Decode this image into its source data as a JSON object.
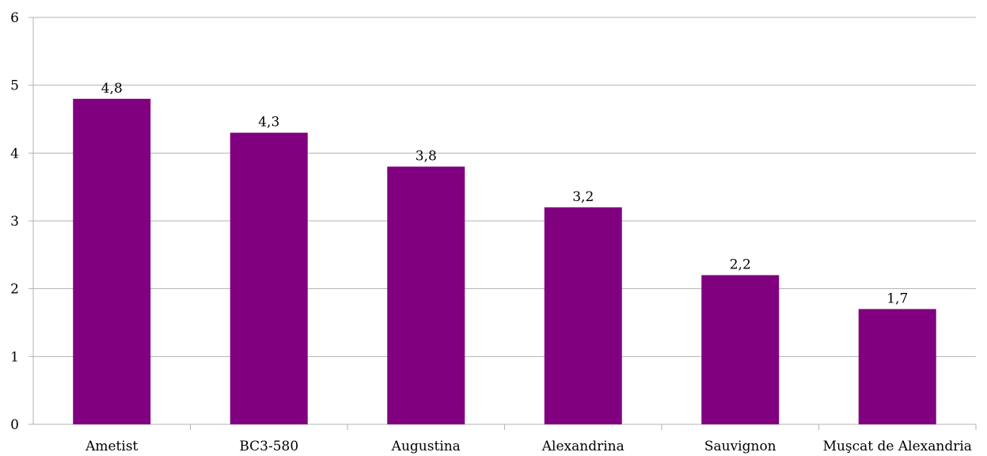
{
  "chart_data": {
    "type": "bar",
    "categories": [
      "Ametist",
      "BC3-580",
      "Augustina",
      "Alexandrina",
      "Sauvignon",
      "Muşcat de Alexandria"
    ],
    "values": [
      4.8,
      4.3,
      3.8,
      3.2,
      2.2,
      1.7
    ],
    "value_labels": [
      "4,8",
      "4,3",
      "3,8",
      "3,2",
      "2,2",
      "1,7"
    ],
    "y_ticks": [
      "0",
      "1",
      "2",
      "3",
      "4",
      "5",
      "6"
    ],
    "ylim": [
      0,
      6
    ],
    "title": "",
    "xlabel": "",
    "ylabel": "",
    "grid": true,
    "legend": "none",
    "colors": {
      "bar": "#800080",
      "grid": "#b3b3b3",
      "axis": "#b3b3b3"
    }
  }
}
